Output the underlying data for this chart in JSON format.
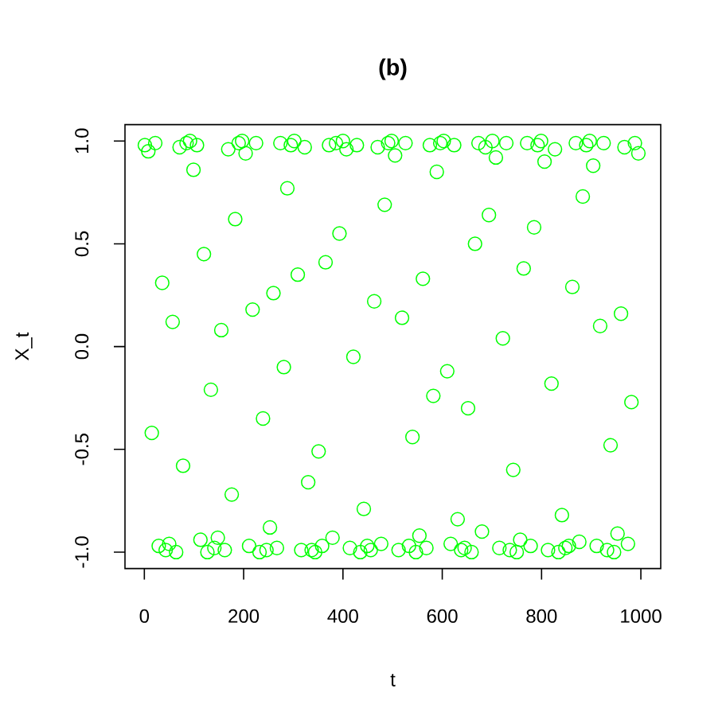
{
  "chart_data": {
    "type": "scatter",
    "title": "(b)",
    "xlabel": "t",
    "ylabel": "X_t",
    "color": "#00ff00",
    "marker": "circle",
    "xlim": [
      -39,
      1040
    ],
    "ylim": [
      -1.08,
      1.08
    ],
    "xticks": [
      0,
      200,
      400,
      600,
      800,
      1000
    ],
    "yticks": [
      {
        "value": -1,
        "label": "-1.0"
      },
      {
        "value": -0.5,
        "label": "-0.5"
      },
      {
        "value": 0,
        "label": "0.0"
      },
      {
        "value": 0.5,
        "label": "0.5"
      },
      {
        "value": 1,
        "label": "1.0"
      }
    ],
    "x": [
      1,
      8,
      15,
      22,
      29,
      36,
      43,
      50,
      57,
      64,
      71,
      78,
      85,
      92,
      99,
      106,
      113,
      120,
      127,
      134,
      141,
      148,
      155,
      162,
      169,
      176,
      183,
      190,
      197,
      204,
      211,
      218,
      225,
      232,
      239,
      246,
      253,
      260,
      267,
      274,
      281,
      288,
      295,
      302,
      309,
      316,
      323,
      330,
      337,
      344,
      351,
      358,
      365,
      372,
      379,
      386,
      393,
      400,
      407,
      414,
      421,
      428,
      435,
      442,
      449,
      456,
      463,
      470,
      477,
      484,
      491,
      498,
      505,
      512,
      519,
      526,
      533,
      540,
      547,
      554,
      561,
      568,
      575,
      582,
      589,
      596,
      603,
      610,
      617,
      624,
      631,
      638,
      645,
      652,
      659,
      666,
      673,
      680,
      687,
      694,
      701,
      708,
      715,
      722,
      729,
      736,
      743,
      750,
      757,
      764,
      771,
      778,
      785,
      792,
      799,
      806,
      813,
      820,
      827,
      834,
      841,
      848,
      855,
      862,
      869,
      876,
      883,
      890,
      897,
      904,
      911,
      918,
      925,
      932,
      939,
      946,
      953,
      960,
      967,
      974,
      981,
      988,
      995
    ],
    "values": [
      0.98,
      0.95,
      -0.42,
      0.99,
      -0.97,
      0.31,
      -0.99,
      -0.96,
      0.12,
      -1.0,
      0.97,
      -0.58,
      0.99,
      1.0,
      0.86,
      0.98,
      -0.94,
      0.45,
      -1.0,
      -0.21,
      -0.98,
      -0.93,
      0.08,
      -0.99,
      0.96,
      -0.72,
      0.62,
      0.99,
      1.0,
      0.94,
      -0.97,
      0.18,
      0.99,
      -1.0,
      -0.35,
      -0.99,
      -0.88,
      0.26,
      -0.98,
      0.99,
      -0.1,
      0.77,
      0.98,
      1.0,
      0.35,
      -0.99,
      0.97,
      -0.66,
      -0.99,
      -1.0,
      -0.51,
      -0.97,
      0.41,
      0.98,
      -0.93,
      0.99,
      0.55,
      1.0,
      0.96,
      -0.98,
      -0.05,
      0.98,
      -1.0,
      -0.79,
      -0.97,
      -0.99,
      0.22,
      0.97,
      -0.96,
      0.69,
      0.99,
      1.0,
      0.93,
      -0.99,
      0.14,
      0.99,
      -0.97,
      -0.44,
      -1.0,
      -0.92,
      0.33,
      -0.98,
      0.98,
      -0.24,
      0.85,
      0.99,
      1.0,
      -0.12,
      -0.96,
      0.98,
      -0.84,
      -0.99,
      -0.98,
      -0.3,
      -1.0,
      0.5,
      0.99,
      -0.9,
      0.97,
      0.64,
      1.0,
      0.92,
      -0.98,
      0.04,
      0.99,
      -0.99,
      -0.6,
      -1.0,
      -0.94,
      0.38,
      0.99,
      -0.97,
      0.58,
      0.98,
      1.0,
      0.9,
      -0.99,
      -0.18,
      0.96,
      -1.0,
      -0.82,
      -0.98,
      -0.97,
      0.29,
      0.99,
      -0.95,
      0.73,
      0.98,
      1.0,
      0.88,
      -0.97,
      0.1,
      0.99,
      -0.99,
      -0.48,
      -1.0,
      -0.91,
      0.16,
      0.97,
      -0.96,
      -0.27,
      0.99,
      0.94
    ]
  }
}
